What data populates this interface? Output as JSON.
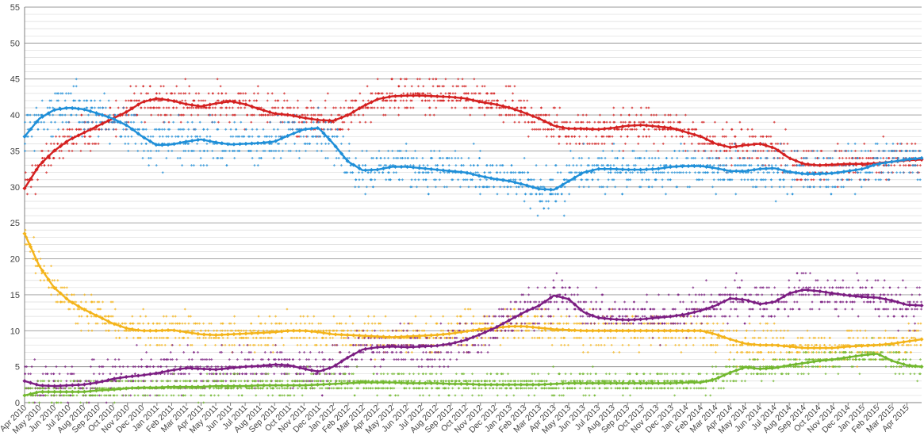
{
  "chart_data": {
    "type": "scatter",
    "title": "",
    "xlabel": "",
    "ylabel": "",
    "ylim": [
      0,
      55
    ],
    "yticks": [
      0,
      5,
      10,
      15,
      20,
      25,
      30,
      35,
      40,
      45,
      50,
      55
    ],
    "minor_grid_step": 1,
    "grid": true,
    "legend": "none",
    "x_tick_labels": [
      "Apr 2010",
      "May 2010",
      "Jun 2010",
      "Jul 2010",
      "Aug 2010",
      "Sep 2010",
      "Oct 2010",
      "Nov 2010",
      "Dec 2010",
      "Jan 2011",
      "Feb 2011",
      "Mar 2011",
      "Apr 2011",
      "May 2011",
      "Jun 2011",
      "Jul 2011",
      "Aug 2011",
      "Sep 2011",
      "Oct 2011",
      "Nov 2011",
      "Dec 2011",
      "Jan 2012",
      "Feb 2012",
      "Mar 2012",
      "Apr 2012",
      "May 2012",
      "Jun 2012",
      "Jul 2012",
      "Aug 2012",
      "Sep 2012",
      "Oct 2012",
      "Nov 2012",
      "Dec 2012",
      "Jan 2013",
      "Feb 2013",
      "Mar 2013",
      "Apr 2013",
      "May 2013",
      "Jun 2013",
      "Jul 2013",
      "Aug 2013",
      "Sep 2013",
      "Oct 2013",
      "Nov 2013",
      "Dec 2013",
      "Jan 2014",
      "Feb 2014",
      "Mar 2014",
      "Apr 2014",
      "May 2014",
      "Jun 2014",
      "Jul 2014",
      "Aug 2014",
      "Sep 2014",
      "Oct 2014",
      "Nov 2014",
      "Dec 2014",
      "Jan 2015",
      "Feb 2015",
      "Mar 2015",
      "Apr 2015"
    ],
    "x_range_months": [
      0,
      61
    ],
    "series": [
      {
        "name": "Red series",
        "color": "#d42020",
        "trend_x": [
          0,
          1,
          2,
          3,
          4,
          5,
          6,
          7,
          8,
          9,
          10,
          11,
          12,
          13,
          14,
          15,
          16,
          17,
          18,
          19,
          20,
          21,
          22,
          23,
          24,
          25,
          26,
          27,
          28,
          29,
          30,
          31,
          32,
          33,
          34,
          35,
          36,
          37,
          38,
          39,
          40,
          41,
          42,
          43,
          44,
          45,
          46,
          47,
          48,
          49,
          50,
          51,
          52,
          53,
          54,
          55,
          56,
          57,
          58,
          59,
          60,
          61
        ],
        "trend_y": [
          29.8,
          33,
          35,
          36.5,
          37.5,
          38.5,
          39.5,
          40.5,
          41.8,
          42.3,
          42,
          41.5,
          41.2,
          41.6,
          41.9,
          41.5,
          40.8,
          40.2,
          40,
          39.6,
          39.3,
          39.2,
          40,
          41.2,
          42.2,
          42.6,
          42.7,
          42.7,
          42.6,
          42.5,
          42.3,
          41.8,
          41.5,
          41,
          40.3,
          39.5,
          38.5,
          38.1,
          38.1,
          38,
          38.2,
          38.5,
          38.6,
          38.4,
          38.2,
          37.6,
          37,
          36,
          35.5,
          35.8,
          36,
          35.4,
          34,
          33.2,
          33,
          33.1,
          33.2,
          33.2,
          33.3,
          33.5,
          33.7,
          33.8
        ],
        "scatter_spread": 2.6
      },
      {
        "name": "Blue series",
        "color": "#1f8fd8",
        "trend_x": [
          0,
          1,
          2,
          3,
          4,
          5,
          6,
          7,
          8,
          9,
          10,
          11,
          12,
          13,
          14,
          15,
          16,
          17,
          18,
          19,
          20,
          21,
          22,
          23,
          24,
          25,
          26,
          27,
          28,
          29,
          30,
          31,
          32,
          33,
          34,
          35,
          36,
          37,
          38,
          39,
          40,
          41,
          42,
          43,
          44,
          45,
          46,
          47,
          48,
          49,
          50,
          51,
          52,
          53,
          54,
          55,
          56,
          57,
          58,
          59,
          60,
          61
        ],
        "trend_y": [
          37,
          39.5,
          40.7,
          41,
          40.8,
          40.2,
          39.5,
          38.5,
          37,
          35.8,
          35.9,
          36.3,
          36.6,
          36.2,
          35.9,
          36,
          36.1,
          36.3,
          37.2,
          38,
          38.2,
          36,
          33.5,
          32.3,
          32.4,
          32.8,
          32.8,
          32.6,
          32.4,
          32.2,
          32,
          31.5,
          31.1,
          30.8,
          30.3,
          29.7,
          29.6,
          30.8,
          32,
          32.5,
          32.5,
          32.4,
          32.4,
          32.5,
          32.8,
          32.9,
          32.9,
          32.6,
          32.2,
          32.2,
          32.5,
          32.6,
          32.1,
          31.8,
          31.8,
          31.9,
          32.2,
          32.5,
          33.2,
          33.5,
          33.8,
          34
        ],
        "scatter_spread": 3.2
      },
      {
        "name": "Yellow series",
        "color": "#f4b41a",
        "trend_x": [
          0,
          1,
          2,
          3,
          4,
          5,
          6,
          7,
          8,
          9,
          10,
          11,
          12,
          13,
          14,
          15,
          16,
          17,
          18,
          19,
          20,
          21,
          22,
          23,
          24,
          25,
          26,
          27,
          28,
          29,
          30,
          31,
          32,
          33,
          34,
          35,
          36,
          37,
          38,
          39,
          40,
          41,
          42,
          43,
          44,
          45,
          46,
          47,
          48,
          49,
          50,
          51,
          52,
          53,
          54,
          55,
          56,
          57,
          58,
          59,
          60,
          61
        ],
        "trend_y": [
          23.5,
          19,
          16,
          14.2,
          13,
          12,
          11,
          10.3,
          10,
          10,
          10.1,
          9.8,
          9.5,
          9.4,
          9.5,
          9.6,
          9.7,
          9.8,
          10,
          10,
          9.8,
          9.5,
          9.4,
          9.3,
          9.2,
          9.1,
          9.2,
          9.3,
          9.4,
          9.6,
          9.9,
          10.2,
          10.4,
          10.6,
          10.6,
          10.4,
          10.2,
          10.1,
          10,
          10,
          10,
          10,
          10,
          10,
          10,
          10,
          10,
          9.5,
          8.8,
          8.2,
          8,
          8,
          7.8,
          7.6,
          7.6,
          7.6,
          7.8,
          7.9,
          8,
          8.2,
          8.5,
          8.8
        ],
        "scatter_spread": 2.4
      },
      {
        "name": "Purple series",
        "color": "#7b1d82",
        "trend_x": [
          0,
          1,
          2,
          3,
          4,
          5,
          6,
          7,
          8,
          9,
          10,
          11,
          12,
          13,
          14,
          15,
          16,
          17,
          18,
          19,
          20,
          21,
          22,
          23,
          24,
          25,
          26,
          27,
          28,
          29,
          30,
          31,
          32,
          33,
          34,
          35,
          36,
          37,
          38,
          39,
          40,
          41,
          42,
          43,
          44,
          45,
          46,
          47,
          48,
          49,
          50,
          51,
          52,
          53,
          54,
          55,
          56,
          57,
          58,
          59,
          60,
          61
        ],
        "trend_y": [
          3,
          2.4,
          2.3,
          2.4,
          2.5,
          2.8,
          3.3,
          3.6,
          3.8,
          4.1,
          4.5,
          4.8,
          4.7,
          4.6,
          4.8,
          5,
          5.1,
          5.3,
          5.2,
          4.7,
          4.3,
          5,
          6.3,
          7.4,
          7.7,
          7.8,
          7.7,
          7.8,
          7.9,
          8.2,
          8.7,
          9.5,
          10.4,
          11.5,
          12.6,
          13.5,
          14.9,
          14.4,
          12.6,
          11.8,
          11.6,
          11.5,
          11.6,
          11.8,
          12,
          12.3,
          12.8,
          13.5,
          14.5,
          14.3,
          13.7,
          14,
          15.2,
          15.7,
          15.5,
          15.2,
          14.9,
          14.7,
          14.6,
          14.2,
          13.6,
          13.5
        ],
        "scatter_spread": 3.0
      },
      {
        "name": "Green series",
        "color": "#72b82f",
        "trend_x": [
          0,
          1,
          2,
          3,
          4,
          5,
          6,
          7,
          8,
          9,
          10,
          11,
          12,
          13,
          14,
          15,
          16,
          17,
          18,
          19,
          20,
          21,
          22,
          23,
          24,
          25,
          26,
          27,
          28,
          29,
          30,
          31,
          32,
          33,
          34,
          35,
          36,
          37,
          38,
          39,
          40,
          41,
          42,
          43,
          44,
          45,
          46,
          47,
          48,
          49,
          50,
          51,
          52,
          53,
          54,
          55,
          56,
          57,
          58,
          59,
          60,
          61
        ],
        "trend_y": [
          1,
          1.5,
          1.5,
          1.5,
          1.5,
          1.7,
          1.8,
          2,
          2.1,
          2.1,
          2.2,
          2.2,
          2.2,
          2.3,
          2.3,
          2.3,
          2.4,
          2.4,
          2.4,
          2.4,
          2.5,
          2.6,
          2.7,
          2.8,
          2.8,
          2.8,
          2.7,
          2.7,
          2.7,
          2.6,
          2.6,
          2.5,
          2.5,
          2.5,
          2.5,
          2.5,
          2.6,
          2.7,
          2.7,
          2.7,
          2.7,
          2.7,
          2.7,
          2.7,
          2.7,
          2.8,
          2.8,
          3.3,
          4.2,
          4.9,
          4.7,
          4.8,
          5.2,
          5.5,
          5.8,
          6,
          6.3,
          6.6,
          6.8,
          5.8,
          5.2,
          5
        ],
        "scatter_spread": 1.6
      }
    ]
  }
}
